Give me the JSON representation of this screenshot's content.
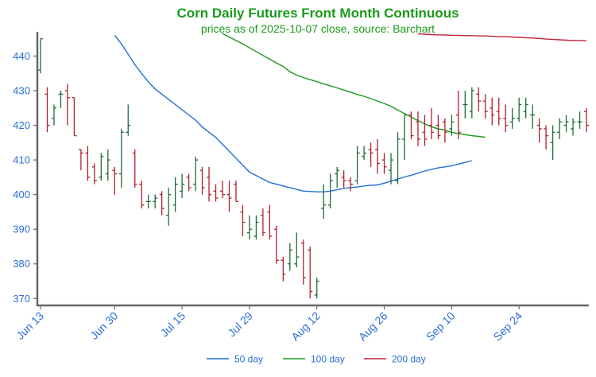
{
  "chart_data": {
    "type": "ohlc",
    "title": "Corn Daily Futures Front Month Continuous",
    "subtitle": "prices as of 2025-10-07 close, source: Barchart",
    "ylim": [
      368,
      447
    ],
    "yticks": [
      370,
      380,
      390,
      400,
      410,
      420,
      430,
      440
    ],
    "xticks": [
      {
        "label": "Jun 13",
        "index": 0
      },
      {
        "label": "Jun 30",
        "index": 11
      },
      {
        "label": "Jul 15",
        "index": 21
      },
      {
        "label": "Jul 29",
        "index": 31
      },
      {
        "label": "Aug 12",
        "index": 41
      },
      {
        "label": "Aug 26",
        "index": 51
      },
      {
        "label": "Sep 10",
        "index": 61
      },
      {
        "label": "Sep 24",
        "index": 71
      }
    ],
    "colors": {
      "up": "#1e6b3a",
      "down": "#b0202c",
      "ma50": "#1f6fd6",
      "ma100": "#1a9a1a",
      "ma200": "#c0203a"
    },
    "bars": [
      [
        436,
        445,
        435,
        445
      ],
      [
        429,
        431,
        418,
        420
      ],
      [
        422,
        426,
        420,
        425
      ],
      [
        429,
        430,
        425,
        429
      ],
      [
        430,
        432,
        420,
        428
      ],
      [
        428,
        428,
        417,
        417
      ],
      [
        413,
        413,
        407,
        412
      ],
      [
        412,
        414,
        404,
        405
      ],
      [
        408,
        409,
        403,
        404
      ],
      [
        405,
        412,
        404,
        411
      ],
      [
        406,
        413,
        404,
        410
      ],
      [
        407,
        408,
        400,
        406
      ],
      [
        406,
        419,
        402,
        418
      ],
      [
        418,
        426,
        417,
        420
      ],
      [
        412,
        413,
        402,
        403
      ],
      [
        403,
        404,
        396,
        397
      ],
      [
        398,
        400,
        396,
        398
      ],
      [
        398,
        400,
        396,
        399
      ],
      [
        400,
        401,
        394,
        396
      ],
      [
        394,
        402,
        391,
        400
      ],
      [
        397,
        405,
        395,
        403
      ],
      [
        401,
        406,
        399,
        403
      ],
      [
        405,
        406,
        401,
        402
      ],
      [
        403,
        411,
        401,
        410
      ],
      [
        407,
        408,
        400,
        402
      ],
      [
        405,
        408,
        398,
        400
      ],
      [
        401,
        403,
        398,
        399
      ],
      [
        401,
        404,
        399,
        400
      ],
      [
        400,
        404,
        395,
        399
      ],
      [
        403,
        404,
        398,
        398
      ],
      [
        395,
        397,
        388,
        392
      ],
      [
        389,
        394,
        387,
        390
      ],
      [
        388,
        394,
        387,
        392
      ],
      [
        394,
        396,
        388,
        389
      ],
      [
        395,
        397,
        387,
        388
      ],
      [
        390,
        391,
        380,
        381
      ],
      [
        381,
        382,
        375,
        377
      ],
      [
        380,
        386,
        378,
        384
      ],
      [
        380,
        389,
        379,
        382
      ],
      [
        386,
        387,
        374,
        376
      ],
      [
        384,
        385,
        370,
        372
      ],
      [
        371,
        376,
        370,
        375
      ],
      [
        396,
        403,
        393,
        397
      ],
      [
        397,
        406,
        396,
        404
      ],
      [
        406,
        408,
        402,
        407
      ],
      [
        405,
        407,
        402,
        404
      ],
      [
        404,
        405,
        401,
        403
      ],
      [
        404,
        414,
        403,
        412
      ],
      [
        411,
        414,
        410,
        412
      ],
      [
        413,
        415,
        408,
        412
      ],
      [
        413,
        416,
        406,
        409
      ],
      [
        410,
        412,
        406,
        408
      ],
      [
        407,
        412,
        403,
        410
      ],
      [
        404,
        418,
        403,
        416
      ],
      [
        416,
        423,
        410,
        423
      ],
      [
        423,
        424,
        416,
        417
      ],
      [
        421,
        424,
        414,
        416
      ],
      [
        418,
        423,
        414,
        416
      ],
      [
        420,
        425,
        416,
        418
      ],
      [
        420,
        423,
        416,
        417
      ],
      [
        421,
        422,
        415,
        418
      ],
      [
        419,
        423,
        417,
        421
      ],
      [
        423,
        430,
        416,
        418
      ],
      [
        426,
        430,
        422,
        426
      ],
      [
        424,
        431,
        422,
        430
      ],
      [
        429,
        431,
        424,
        427
      ],
      [
        427,
        429,
        422,
        424
      ],
      [
        425,
        428,
        420,
        423
      ],
      [
        424,
        428,
        420,
        422
      ],
      [
        422,
        426,
        418,
        420
      ],
      [
        421,
        425,
        419,
        422
      ],
      [
        422,
        428,
        421,
        426
      ],
      [
        424,
        428,
        422,
        426
      ],
      [
        423,
        426,
        419,
        423
      ],
      [
        420,
        422,
        415,
        419
      ],
      [
        419,
        420,
        413,
        417
      ],
      [
        415,
        420,
        410,
        418
      ],
      [
        418,
        422,
        416,
        421
      ],
      [
        420,
        423,
        418,
        421
      ],
      [
        419,
        422,
        417,
        421
      ],
      [
        421,
        424,
        419,
        421
      ],
      [
        424,
        425,
        418,
        420
      ]
    ],
    "series": [
      {
        "name": "50 day",
        "start": 11,
        "values": [
          446,
          443.5,
          440.5,
          437.5,
          435,
          432.5,
          430.5,
          429,
          427.5,
          426,
          424.5,
          423,
          421.5,
          419.5,
          418,
          416.5,
          414.5,
          412.5,
          410.5,
          408.5,
          406.5,
          405.5,
          404.5,
          403.5,
          403,
          402.5,
          402,
          401.5,
          401,
          400.9,
          400.8,
          400.8,
          401,
          401.4,
          401.8,
          402,
          402.2,
          402.5,
          402.7,
          402.8,
          403.3,
          403.9,
          404.5,
          405.1,
          405.6,
          406.2,
          406.8,
          407.3,
          407.7,
          408,
          408.3,
          408.8,
          409.3,
          409.8
        ]
      },
      {
        "name": "100 day",
        "start": 27,
        "values": [
          446.5,
          445.5,
          444.5,
          443.5,
          442.4,
          441.3,
          440.2,
          439.1,
          438,
          437,
          435.5,
          434.5,
          433.8,
          433.2,
          432.6,
          432,
          431.4,
          430.8,
          430.2,
          429.6,
          428.9,
          428.4,
          427.7,
          427,
          426.3,
          425.5,
          424.4,
          423.4,
          422.4,
          421.4,
          420.4,
          419.6,
          419,
          418.6,
          418,
          417.6,
          417.3,
          417,
          416.8,
          416.6
        ]
      },
      {
        "name": "200 day",
        "start": 56,
        "values": [
          446.4,
          446.3,
          446.2,
          446.1,
          446.1,
          446,
          446,
          445.9,
          445.9,
          445.8,
          445.8,
          445.7,
          445.6,
          445.6,
          445.5,
          445.4,
          445.3,
          445.2,
          445.1,
          444.9,
          444.8,
          444.7,
          444.6,
          444.5,
          444.5,
          444.4
        ]
      }
    ],
    "legend": [
      {
        "name": "50 day",
        "key": "ma50"
      },
      {
        "name": "100 day",
        "key": "ma100"
      },
      {
        "name": "200 day",
        "key": "ma200"
      }
    ],
    "legend_position": "bottom-center",
    "grid": false
  }
}
